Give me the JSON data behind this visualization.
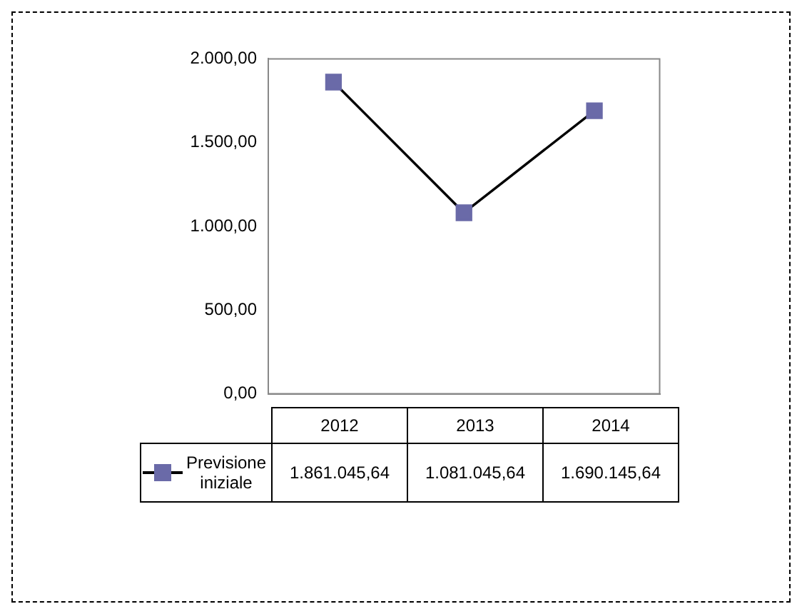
{
  "chart_data": {
    "type": "line",
    "categories": [
      "2012",
      "2013",
      "2014"
    ],
    "series": [
      {
        "name": "Previsione iniziale",
        "color": "#6a6aa8",
        "values": [
          1861.04564,
          1081.04564,
          1690.14564
        ]
      }
    ],
    "annotations": [
      "1.861.045,64",
      "1.081.045,64",
      "1.690.145,64"
    ],
    "ylim": [
      0,
      2000
    ],
    "yticks": [
      {
        "value": 0,
        "label": "0,00"
      },
      {
        "value": 500,
        "label": "500,00"
      },
      {
        "value": 1000,
        "label": "1.000,00"
      },
      {
        "value": 1500,
        "label": "1.500,00"
      },
      {
        "value": 2000,
        "label": "2.000,00"
      }
    ],
    "grid": false,
    "legend": "bottom",
    "marker": "square",
    "line_style": "solid"
  }
}
